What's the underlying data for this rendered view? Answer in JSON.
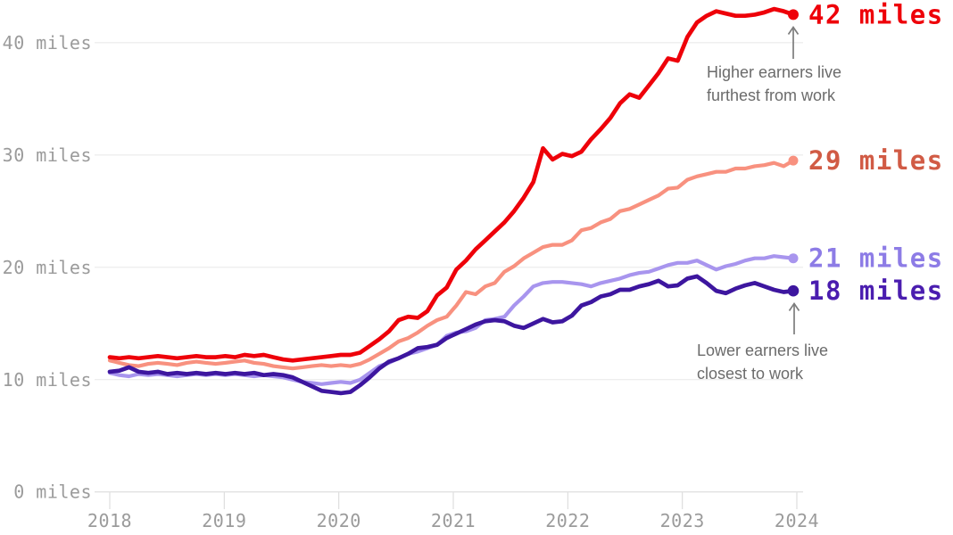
{
  "chart_data": {
    "type": "line",
    "title": "",
    "unit": "miles",
    "x_axis": {
      "tick_labels": [
        "2018",
        "2019",
        "2020",
        "2021",
        "2022",
        "2023",
        "2024"
      ],
      "range": [
        2018,
        2024
      ]
    },
    "y_axis": {
      "tick_labels": [
        "0 miles",
        "10 miles",
        "20 miles",
        "30 miles",
        "40 miles"
      ],
      "tick_values": [
        0,
        10,
        20,
        30,
        40
      ],
      "range": [
        0,
        44
      ],
      "grid": true
    },
    "x_frequency": "monthly",
    "x_start": "2018-01",
    "x_end": "2023-12",
    "series": [
      {
        "name": "42 miles (higher earners)",
        "end_label": "42 miles",
        "end_value": 42,
        "color": "#ee0009",
        "label_color": "#ee0009",
        "values": [
          12.0,
          11.9,
          12.0,
          11.9,
          12.0,
          12.1,
          12.0,
          11.9,
          12.0,
          12.1,
          12.0,
          12.0,
          12.1,
          12.0,
          12.2,
          12.1,
          12.2,
          12.0,
          11.8,
          11.7,
          11.8,
          11.9,
          12.0,
          12.1,
          12.2,
          12.2,
          12.4,
          13.0,
          13.6,
          14.3,
          15.3,
          15.6,
          15.5,
          16.1,
          17.5,
          18.2,
          19.8,
          20.6,
          21.6,
          22.4,
          23.2,
          24.0,
          25.0,
          26.2,
          27.6,
          30.6,
          29.6,
          30.1,
          29.9,
          30.3,
          31.4,
          32.3,
          33.3,
          34.6,
          35.4,
          35.1,
          36.2,
          37.3,
          38.6,
          38.4,
          40.5,
          41.8,
          42.4,
          42.8,
          42.6,
          42.4,
          42.4,
          42.5,
          42.7,
          43.0,
          42.8,
          42.5
        ]
      },
      {
        "name": "29 miles",
        "end_label": "29 miles",
        "end_value": 29,
        "color": "#f8917f",
        "label_color": "#d15b45",
        "values": [
          11.7,
          11.5,
          11.3,
          11.2,
          11.4,
          11.5,
          11.4,
          11.3,
          11.5,
          11.6,
          11.5,
          11.4,
          11.5,
          11.6,
          11.7,
          11.5,
          11.4,
          11.2,
          11.1,
          11.0,
          11.1,
          11.2,
          11.3,
          11.2,
          11.3,
          11.2,
          11.4,
          11.8,
          12.3,
          12.8,
          13.4,
          13.7,
          14.2,
          14.8,
          15.3,
          15.6,
          16.6,
          17.8,
          17.6,
          18.3,
          18.6,
          19.6,
          20.1,
          20.8,
          21.3,
          21.8,
          22.0,
          22.0,
          22.4,
          23.3,
          23.5,
          24.0,
          24.3,
          25.0,
          25.2,
          25.6,
          26.0,
          26.4,
          27.0,
          27.1,
          27.8,
          28.1,
          28.3,
          28.5,
          28.5,
          28.8,
          28.8,
          29.0,
          29.1,
          29.3,
          29.0,
          29.5
        ]
      },
      {
        "name": "21 miles",
        "end_label": "21 miles",
        "end_value": 21,
        "color": "#a895ee",
        "label_color": "#8d7ce6",
        "values": [
          10.6,
          10.4,
          10.3,
          10.5,
          10.4,
          10.5,
          10.4,
          10.3,
          10.4,
          10.5,
          10.4,
          10.5,
          10.4,
          10.5,
          10.4,
          10.3,
          10.4,
          10.3,
          10.2,
          10.0,
          9.8,
          9.7,
          9.6,
          9.7,
          9.8,
          9.7,
          10.0,
          10.6,
          11.2,
          11.5,
          11.9,
          12.3,
          12.5,
          12.8,
          13.1,
          13.9,
          14.2,
          14.3,
          14.6,
          15.3,
          15.4,
          15.6,
          16.6,
          17.4,
          18.3,
          18.6,
          18.7,
          18.7,
          18.6,
          18.5,
          18.3,
          18.6,
          18.8,
          19.0,
          19.3,
          19.5,
          19.6,
          19.9,
          20.2,
          20.4,
          20.4,
          20.6,
          20.2,
          19.8,
          20.1,
          20.3,
          20.6,
          20.8,
          20.8,
          21.0,
          20.9,
          20.8
        ]
      },
      {
        "name": "18 miles (lower earners)",
        "end_label": "18 miles",
        "end_value": 18,
        "color": "#3d169f",
        "label_color": "#4a1daf",
        "values": [
          10.7,
          10.8,
          11.1,
          10.7,
          10.6,
          10.7,
          10.5,
          10.6,
          10.5,
          10.6,
          10.5,
          10.6,
          10.5,
          10.6,
          10.5,
          10.6,
          10.4,
          10.5,
          10.4,
          10.2,
          9.8,
          9.4,
          9.0,
          8.9,
          8.8,
          8.9,
          9.5,
          10.2,
          11.0,
          11.6,
          11.9,
          12.3,
          12.8,
          12.9,
          13.1,
          13.7,
          14.1,
          14.5,
          14.9,
          15.2,
          15.3,
          15.2,
          14.8,
          14.6,
          15.0,
          15.4,
          15.1,
          15.2,
          15.7,
          16.6,
          16.9,
          17.4,
          17.6,
          18.0,
          18.0,
          18.3,
          18.5,
          18.8,
          18.3,
          18.4,
          19.0,
          19.2,
          18.6,
          17.9,
          17.7,
          18.1,
          18.4,
          18.6,
          18.3,
          18.0,
          17.8,
          17.9
        ]
      }
    ],
    "annotations": [
      {
        "target": "42 miles",
        "line1": "Higher earners live",
        "line2": "furthest from work"
      },
      {
        "target": "18 miles",
        "line1": "Lower earners live",
        "line2": "closest to work"
      }
    ],
    "legend_position": "right-end-labels"
  },
  "colors": {
    "background": "#ffffff",
    "gridline": "#e8e8e8",
    "axis": "#d7d7d7",
    "axis_text": "#9b9b9b",
    "annotation_text": "#6b6b6b",
    "arrow": "#7d7d7d"
  }
}
